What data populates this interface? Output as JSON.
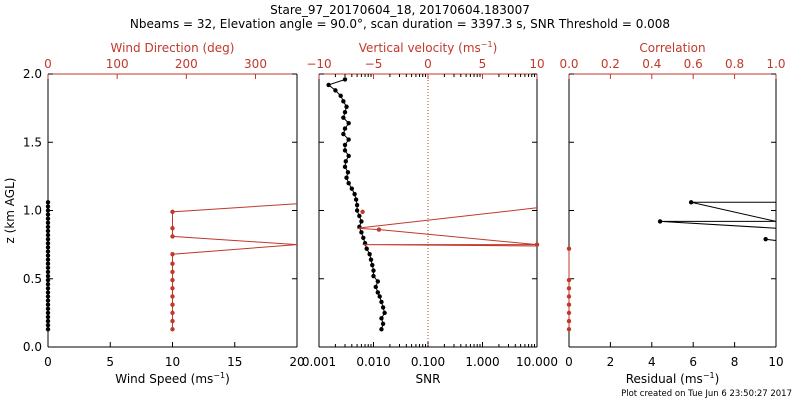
{
  "header": {
    "title": "Stare_97_20170604_18, 20170604.183007",
    "subtitle": "Nbeams = 32, Elevation angle = 90.0°, scan duration = 3397.3 s, SNR Threshold = 0.008"
  },
  "footer": {
    "plot_created": "Plot created on Tue Jun  6 23:50:27 2017"
  },
  "colors": {
    "axis": "#000000",
    "accent": "#c0392b",
    "black_data": "#000000"
  },
  "chart_data": [
    {
      "type": "line",
      "panel": "left",
      "ylabel": "z (km AGL)",
      "ylim": [
        0,
        2
      ],
      "yticks": [
        0.0,
        0.5,
        1.0,
        1.5,
        2.0
      ],
      "ytick_labels": [
        "0.0",
        "0.5",
        "1.0",
        "1.5",
        "2.0"
      ],
      "bottom_axis": {
        "label": "Wind Speed (ms",
        "exp": "−1",
        "close": ")",
        "xlim": [
          0,
          20
        ],
        "ticks": [
          0,
          5,
          10,
          15,
          20
        ],
        "tick_labels": [
          "0",
          "5",
          "10",
          "15",
          "20"
        ]
      },
      "top_axis": {
        "label": "Wind Direction (deg)",
        "exp": "",
        "close": "",
        "xlim": [
          0,
          360
        ],
        "ticks": [
          0,
          100,
          200,
          300
        ],
        "tick_labels": [
          "0",
          "100",
          "200",
          "300"
        ]
      },
      "series": [
        {
          "name": "Wind Speed",
          "axis": "bottom",
          "color": "#000000",
          "x": [
            0,
            0,
            0,
            0,
            0,
            0,
            0,
            0,
            0,
            0,
            0,
            0,
            0,
            0,
            0,
            0,
            0,
            0,
            0,
            0,
            0,
            0,
            0,
            0,
            0,
            0,
            0,
            0,
            0,
            0,
            0,
            0
          ],
          "y": [
            0.13,
            0.16,
            0.19,
            0.22,
            0.25,
            0.28,
            0.31,
            0.34,
            0.37,
            0.4,
            0.43,
            0.46,
            0.49,
            0.52,
            0.55,
            0.58,
            0.61,
            0.64,
            0.67,
            0.7,
            0.73,
            0.76,
            0.79,
            0.82,
            0.85,
            0.88,
            0.91,
            0.94,
            0.97,
            1.0,
            1.03,
            1.06
          ]
        },
        {
          "name": "Wind Direction",
          "axis": "top",
          "color": "#c0392b",
          "x": [
            180,
            180,
            180,
            180,
            180,
            180,
            180,
            180,
            180,
            360,
            180,
            180,
            360
          ],
          "y": [
            0.13,
            0.19,
            0.25,
            0.31,
            0.37,
            0.43,
            0.49,
            0.55,
            0.61,
            0.75,
            0.81,
            0.87,
            1.05
          ],
          "y_path": [
            0.13,
            0.19,
            0.25,
            0.31,
            0.37,
            0.43,
            0.49,
            0.55,
            0.61,
            0.68,
            0.75,
            0.81,
            0.87,
            0.99,
            1.05
          ],
          "x_path": [
            180,
            180,
            180,
            180,
            180,
            180,
            180,
            180,
            180,
            180,
            360,
            180,
            180,
            180,
            360
          ],
          "marker_y": [
            0.13,
            0.19,
            0.25,
            0.31,
            0.37,
            0.43,
            0.49,
            0.55,
            0.61,
            0.68,
            0.81,
            0.87,
            0.99
          ]
        }
      ]
    },
    {
      "type": "line",
      "panel": "middle",
      "ylim": [
        0,
        2
      ],
      "bottom_axis": {
        "label": "SNR",
        "exp": "",
        "close": "",
        "scale": "log",
        "xlim": [
          0.001,
          10
        ],
        "ticks": [
          0.001,
          0.01,
          0.1,
          1,
          10
        ],
        "tick_labels": [
          "0.001",
          "0.010",
          "0.100",
          "1.000",
          "10.000"
        ]
      },
      "top_axis": {
        "label": "Vertical velocity (ms",
        "exp": "−1",
        "close": ")",
        "xlim": [
          -10,
          10
        ],
        "ticks": [
          -10,
          -5,
          0,
          5,
          10
        ],
        "tick_labels": [
          "−10",
          "−5",
          "0",
          "5",
          "10"
        ]
      },
      "threshold_line": {
        "axis": "bottom",
        "x": 0.1
      },
      "series": [
        {
          "name": "SNR",
          "axis": "bottom",
          "color": "#000000",
          "x": [
            0.014,
            0.015,
            0.014,
            0.016,
            0.015,
            0.014,
            0.013,
            0.012,
            0.011,
            0.012,
            0.01,
            0.01,
            0.0095,
            0.009,
            0.0085,
            0.0075,
            0.007,
            0.0065,
            0.006,
            0.0055,
            0.006,
            0.0055,
            0.005,
            0.005,
            0.0048,
            0.0045,
            0.004,
            0.0035,
            0.0032,
            0.0034,
            0.003,
            0.0031,
            0.0035,
            0.003,
            0.003,
            0.0035,
            0.0028,
            0.003,
            0.0035,
            0.0028,
            0.003,
            0.0032,
            0.0028,
            0.0025,
            0.002,
            0.0015,
            0.003
          ],
          "y": [
            0.13,
            0.17,
            0.21,
            0.25,
            0.29,
            0.33,
            0.37,
            0.4,
            0.44,
            0.48,
            0.52,
            0.56,
            0.6,
            0.64,
            0.68,
            0.72,
            0.76,
            0.8,
            0.84,
            0.88,
            0.92,
            0.96,
            1.0,
            1.04,
            1.08,
            1.12,
            1.16,
            1.2,
            1.24,
            1.28,
            1.32,
            1.36,
            1.4,
            1.44,
            1.48,
            1.52,
            1.56,
            1.6,
            1.64,
            1.68,
            1.72,
            1.76,
            1.8,
            1.84,
            1.88,
            1.92,
            1.96
          ]
        },
        {
          "name": "Vertical velocity",
          "axis": "top",
          "color": "#c0392b",
          "x_path": [
            10,
            -6.0,
            10,
            -4.5,
            -6.5,
            10
          ],
          "y_path": [
            0.74,
            0.75,
            0.75,
            0.86,
            0.87,
            1.02
          ],
          "marker_x": [
            10,
            -4.5,
            -6.0
          ],
          "marker_y": [
            0.75,
            0.86,
            0.99
          ]
        }
      ]
    },
    {
      "type": "line",
      "panel": "right",
      "ylim": [
        0,
        2
      ],
      "bottom_axis": {
        "label": "Residual (ms",
        "exp": "−1",
        "close": ")",
        "xlim": [
          0,
          10
        ],
        "ticks": [
          0,
          2,
          4,
          6,
          8,
          10
        ],
        "tick_labels": [
          "0",
          "2",
          "4",
          "6",
          "8",
          "10"
        ]
      },
      "top_axis": {
        "label": "Correlation",
        "exp": "",
        "close": "",
        "xlim": [
          0,
          1
        ],
        "ticks": [
          0,
          0.2,
          0.4,
          0.6,
          0.8,
          1.0
        ],
        "tick_labels": [
          "0.0",
          "0.2",
          "0.4",
          "0.6",
          "0.8",
          "1.0"
        ]
      },
      "series": [
        {
          "name": "Residual",
          "axis": "bottom",
          "color": "#000000",
          "x_path": [
            9.5,
            10,
            10,
            4.4,
            10,
            5.9,
            10
          ],
          "y_path": [
            0.79,
            0.78,
            0.87,
            0.92,
            0.92,
            1.06,
            1.06
          ],
          "marker_x": [
            9.5,
            4.4,
            5.9
          ],
          "marker_y": [
            0.79,
            0.92,
            1.06
          ]
        },
        {
          "name": "Correlation",
          "axis": "top",
          "color": "#c0392b",
          "x": [
            0,
            0,
            0,
            0,
            0,
            0,
            0,
            0
          ],
          "y": [
            0.13,
            0.19,
            0.25,
            0.31,
            0.37,
            0.43,
            0.49,
            0.72
          ]
        }
      ]
    }
  ]
}
